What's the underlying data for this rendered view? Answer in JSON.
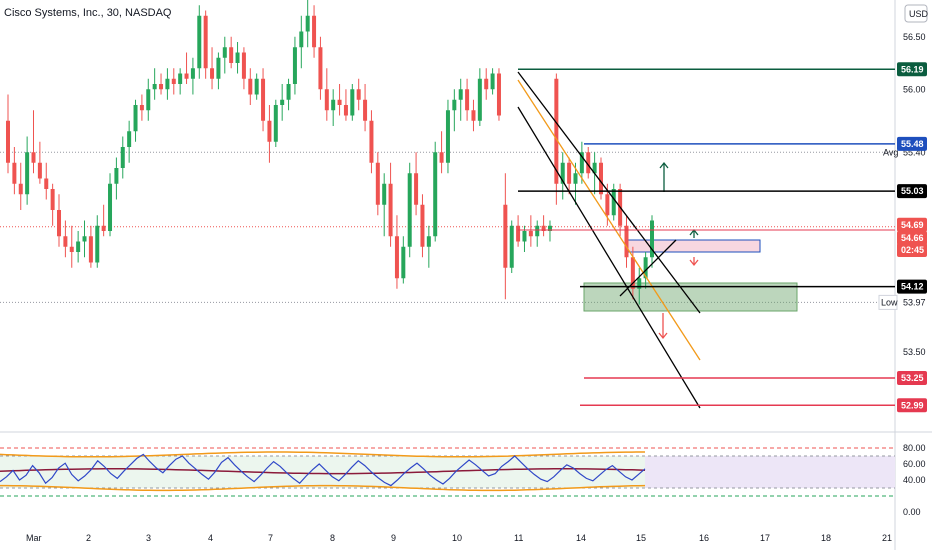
{
  "header": {
    "title": "Cisco Systems, Inc., 30, NASDAQ",
    "currency": "USD"
  },
  "colors": {
    "up": "#26a65b",
    "down": "#ef5350",
    "target_top": "#0b5d3f",
    "avg_line": "#1e4fbd",
    "black": "#000000",
    "red_line": "#e53950",
    "rsi_line": "#3048c8",
    "rsi_ma": "#8b1a3a",
    "bb": "#f29a1a",
    "zone_green": "#6aa56a",
    "zone_pink": "#f8d7e0"
  },
  "chart_data": {
    "type": "candlestick",
    "symbol": "Cisco Systems, Inc.",
    "exchange": "NASDAQ",
    "timeframe": "30",
    "x_ticks": [
      "Mar",
      "2",
      "3",
      "4",
      "7",
      "8",
      "9",
      "10",
      "11",
      "14",
      "15",
      "16",
      "17",
      "18",
      "21"
    ],
    "y_ticks": [
      "56.50",
      "56.00",
      "55.40",
      "53.50"
    ],
    "ylim": [
      52.85,
      56.85
    ],
    "levels": [
      {
        "label": "56.19",
        "value": 56.19,
        "color": "#0b5d3f"
      },
      {
        "label": "55.48",
        "value": 55.48,
        "color": "#1e4fbd"
      },
      {
        "label": "55.03",
        "value": 55.03,
        "color": "#000000"
      },
      {
        "label": "54.12",
        "value": 54.12,
        "color": "#000000"
      },
      {
        "label": "53.25",
        "value": 53.25,
        "color": "#e53950"
      },
      {
        "label": "52.99",
        "value": 52.99,
        "color": "#e53950"
      }
    ],
    "current_price": {
      "label": "54.69",
      "value": 54.69
    },
    "last_price": {
      "label": "54.66",
      "value": 54.66
    },
    "countdown": "02:45",
    "avg": {
      "label": "Avg",
      "value_label": "55.40",
      "value": 55.4
    },
    "low": {
      "label": "Low",
      "value_label": "53.97",
      "value": 53.97
    },
    "candles_ohlc": [
      [
        55.7,
        55.95,
        55.2,
        55.3
      ],
      [
        55.3,
        55.45,
        55.0,
        55.1
      ],
      [
        55.1,
        55.3,
        54.85,
        55.0
      ],
      [
        55.0,
        55.55,
        54.9,
        55.4
      ],
      [
        55.4,
        55.8,
        55.2,
        55.3
      ],
      [
        55.3,
        55.5,
        55.1,
        55.15
      ],
      [
        55.15,
        55.3,
        54.95,
        55.05
      ],
      [
        55.05,
        55.1,
        54.7,
        54.85
      ],
      [
        54.85,
        55.0,
        54.5,
        54.6
      ],
      [
        54.6,
        54.75,
        54.4,
        54.5
      ],
      [
        54.5,
        54.7,
        54.3,
        54.45
      ],
      [
        54.45,
        54.65,
        54.35,
        54.55
      ],
      [
        54.55,
        54.75,
        54.4,
        54.6
      ],
      [
        54.6,
        54.7,
        54.3,
        54.35
      ],
      [
        54.35,
        54.8,
        54.3,
        54.7
      ],
      [
        54.7,
        54.9,
        54.6,
        54.65
      ],
      [
        54.65,
        55.2,
        54.6,
        55.1
      ],
      [
        55.1,
        55.35,
        54.95,
        55.25
      ],
      [
        55.25,
        55.55,
        55.15,
        55.45
      ],
      [
        55.45,
        55.7,
        55.3,
        55.6
      ],
      [
        55.6,
        55.9,
        55.5,
        55.85
      ],
      [
        55.85,
        55.95,
        55.7,
        55.8
      ],
      [
        55.8,
        56.1,
        55.7,
        56.0
      ],
      [
        56.0,
        56.2,
        55.9,
        56.05
      ],
      [
        56.05,
        56.15,
        55.95,
        56.0
      ],
      [
        56.0,
        56.2,
        55.9,
        56.1
      ],
      [
        56.1,
        56.2,
        55.95,
        56.05
      ],
      [
        56.05,
        56.2,
        55.95,
        56.15
      ],
      [
        56.15,
        56.35,
        56.05,
        56.1
      ],
      [
        56.1,
        56.3,
        55.95,
        56.2
      ],
      [
        56.2,
        56.8,
        56.1,
        56.7
      ],
      [
        56.7,
        56.75,
        56.1,
        56.2
      ],
      [
        56.2,
        56.4,
        56.0,
        56.1
      ],
      [
        56.1,
        56.35,
        56.0,
        56.3
      ],
      [
        56.3,
        56.5,
        56.15,
        56.4
      ],
      [
        56.4,
        56.5,
        56.2,
        56.25
      ],
      [
        56.25,
        56.45,
        56.15,
        56.35
      ],
      [
        56.35,
        56.4,
        56.0,
        56.1
      ],
      [
        56.1,
        56.2,
        55.85,
        55.95
      ],
      [
        55.95,
        56.15,
        55.9,
        56.1
      ],
      [
        56.1,
        56.2,
        55.6,
        55.7
      ],
      [
        55.7,
        55.85,
        55.3,
        55.5
      ],
      [
        55.5,
        55.9,
        55.45,
        55.85
      ],
      [
        55.85,
        56.05,
        55.7,
        55.9
      ],
      [
        55.9,
        56.1,
        55.8,
        56.05
      ],
      [
        56.05,
        56.5,
        55.95,
        56.4
      ],
      [
        56.4,
        56.7,
        56.2,
        56.55
      ],
      [
        56.55,
        56.85,
        56.4,
        56.7
      ],
      [
        56.7,
        56.8,
        56.3,
        56.4
      ],
      [
        56.4,
        56.5,
        55.9,
        56.0
      ],
      [
        56.0,
        56.2,
        55.7,
        55.8
      ],
      [
        55.8,
        56.0,
        55.65,
        55.9
      ],
      [
        55.9,
        56.05,
        55.75,
        55.85
      ],
      [
        55.85,
        56.0,
        55.7,
        55.75
      ],
      [
        55.75,
        56.05,
        55.7,
        56.0
      ],
      [
        56.0,
        56.1,
        55.8,
        55.9
      ],
      [
        55.9,
        56.05,
        55.6,
        55.7
      ],
      [
        55.7,
        55.8,
        55.2,
        55.3
      ],
      [
        55.3,
        55.4,
        54.8,
        54.9
      ],
      [
        54.9,
        55.2,
        54.6,
        55.1
      ],
      [
        55.1,
        55.3,
        54.5,
        54.6
      ],
      [
        54.6,
        54.8,
        54.1,
        54.2
      ],
      [
        54.2,
        54.6,
        54.15,
        54.5
      ],
      [
        54.5,
        55.3,
        54.4,
        55.2
      ],
      [
        55.2,
        55.4,
        54.8,
        54.9
      ],
      [
        54.9,
        55.0,
        54.4,
        54.5
      ],
      [
        54.5,
        54.7,
        54.3,
        54.6
      ],
      [
        54.6,
        55.5,
        54.55,
        55.4
      ],
      [
        55.4,
        55.6,
        55.2,
        55.3
      ],
      [
        55.3,
        55.9,
        55.2,
        55.8
      ],
      [
        55.8,
        56.0,
        55.6,
        55.9
      ],
      [
        55.9,
        56.1,
        55.7,
        56.0
      ],
      [
        56.0,
        56.1,
        55.7,
        55.8
      ],
      [
        55.8,
        55.9,
        55.6,
        55.7
      ],
      [
        55.7,
        56.2,
        55.65,
        56.1
      ],
      [
        56.1,
        56.2,
        55.9,
        56.0
      ],
      [
        56.0,
        56.2,
        55.95,
        56.15
      ],
      [
        56.15,
        56.2,
        55.7,
        55.75
      ],
      [
        54.9,
        55.2,
        54.0,
        54.3
      ],
      [
        54.3,
        54.75,
        54.25,
        54.7
      ],
      [
        54.7,
        54.8,
        54.5,
        54.55
      ],
      [
        54.55,
        54.7,
        54.45,
        54.65
      ],
      [
        54.65,
        54.8,
        54.5,
        54.6
      ],
      [
        54.6,
        54.75,
        54.5,
        54.7
      ],
      [
        54.7,
        54.8,
        54.6,
        54.65
      ],
      [
        54.65,
        54.75,
        54.55,
        54.7
      ],
      [
        56.1,
        56.15,
        54.9,
        55.1
      ],
      [
        55.1,
        55.4,
        54.95,
        55.3
      ],
      [
        55.3,
        55.35,
        55.0,
        55.1
      ],
      [
        55.1,
        55.3,
        54.9,
        55.2
      ],
      [
        55.2,
        55.5,
        55.1,
        55.4
      ],
      [
        55.4,
        55.45,
        55.15,
        55.2
      ],
      [
        55.2,
        55.4,
        55.0,
        55.3
      ],
      [
        55.3,
        55.35,
        54.95,
        55.0
      ],
      [
        55.0,
        55.1,
        54.7,
        54.8
      ],
      [
        54.8,
        55.1,
        54.75,
        55.05
      ],
      [
        55.05,
        55.1,
        54.6,
        54.7
      ],
      [
        54.7,
        54.8,
        54.3,
        54.4
      ],
      [
        54.4,
        54.5,
        54.0,
        54.1
      ],
      [
        54.1,
        54.3,
        53.95,
        54.2
      ],
      [
        54.2,
        54.45,
        54.1,
        54.4
      ],
      [
        54.4,
        54.8,
        54.3,
        54.75
      ]
    ]
  },
  "rsi": {
    "y_ticks": [
      "80.00",
      "60.00",
      "40.00",
      "0.00"
    ],
    "ylim": [
      0,
      90
    ],
    "levels": [
      70,
      50,
      30
    ],
    "values": [
      38,
      44,
      52,
      40,
      46,
      58,
      49,
      36,
      43,
      55,
      61,
      47,
      39,
      45,
      53,
      64,
      57,
      48,
      42,
      51,
      59,
      67,
      72,
      63,
      55,
      49,
      58,
      66,
      70,
      61,
      54,
      47,
      41,
      50,
      62,
      68,
      59,
      51,
      44,
      38,
      46,
      55,
      63,
      57,
      49,
      42,
      36,
      45,
      53,
      60,
      52,
      44,
      39,
      47,
      56,
      64,
      58,
      50,
      43,
      37,
      33,
      40,
      48,
      55,
      61,
      54,
      46,
      40,
      35,
      42,
      51,
      58,
      65,
      59,
      52,
      45,
      48,
      57,
      63,
      70,
      62,
      54,
      47,
      41,
      38,
      44,
      52,
      59,
      55,
      48,
      42,
      39,
      46,
      53,
      58,
      51,
      44,
      40,
      47,
      54
    ]
  },
  "drawings": {
    "channel": [
      [
        518,
        72,
        700,
        313
      ],
      [
        518,
        107,
        700,
        408
      ],
      [
        518,
        80,
        700,
        360
      ],
      [
        620,
        296,
        676,
        240
      ]
    ],
    "zones": {
      "green": [
        584,
        283,
        797,
        311
      ],
      "pink": [
        626,
        240,
        760,
        252
      ]
    }
  }
}
